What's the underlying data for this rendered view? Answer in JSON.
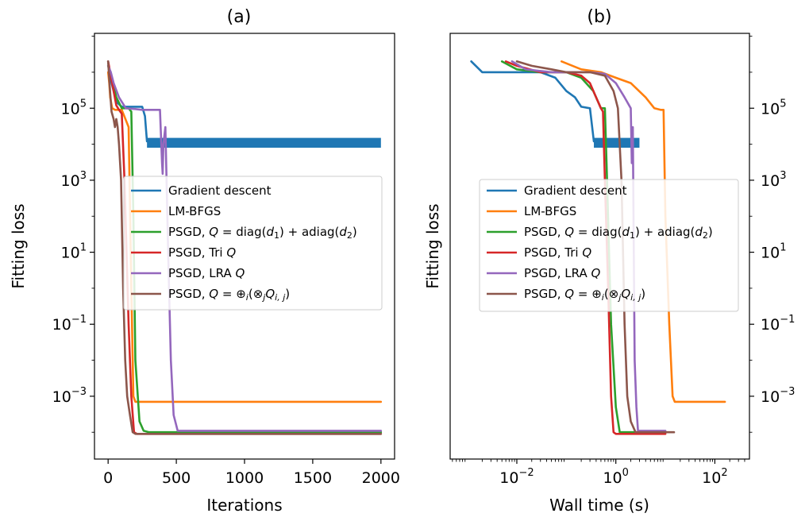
{
  "colors": {
    "gradient_descent": "#1f77b4",
    "lm_bfgs": "#ff7f0e",
    "psgd_diag": "#2ca02c",
    "psgd_tri": "#d62728",
    "psgd_lra": "#9467bd",
    "psgd_kron": "#8c564b"
  },
  "legend": {
    "gradient_descent": "Gradient descent",
    "lm_bfgs": "LM-BFGS",
    "psgd_diag": {
      "prefix": "PSGD, ",
      "Q": "Q",
      "eq": " = diag(",
      "d1": "d",
      "d1_sub": "1",
      "mid": ") + adiag(",
      "d2": "d",
      "d2_sub": "2",
      "end": ")"
    },
    "psgd_tri": {
      "prefix": "PSGD, Tri ",
      "Q": "Q"
    },
    "psgd_lra": {
      "prefix": "PSGD, LRA ",
      "Q": "Q"
    },
    "psgd_kron": {
      "prefix": "PSGD, ",
      "Q": "Q",
      "eq": " = ⊕",
      "i1": "i",
      "mid": "(⊗",
      "j": "j",
      "Qij": "Q",
      "ij": "i, j",
      "end": ")"
    }
  },
  "chart_data": [
    {
      "type": "line",
      "title": "(a)",
      "xlabel": "Iterations",
      "ylabel": "Fitting loss",
      "yscale": "log",
      "xlim": [
        -100,
        2100
      ],
      "ylim": [
        1.8e-05,
        12000000
      ],
      "xticks": [
        0,
        500,
        1000,
        1500,
        2000
      ],
      "xtick_labels": [
        "0",
        "500",
        "1000",
        "1500",
        "2000"
      ],
      "yticks": [
        0.001,
        0.1,
        10,
        1000,
        100000
      ],
      "ytick_labels": [
        {
          "base": "10",
          "exp": "−3"
        },
        {
          "base": "10",
          "exp": "−1"
        },
        {
          "base": "10",
          "exp": "1"
        },
        {
          "base": "10",
          "exp": "3"
        },
        {
          "base": "10",
          "exp": "5"
        }
      ],
      "legend_position": "center-right",
      "series": [
        {
          "key": "gradient_descent",
          "name": "Gradient descent",
          "band": {
            "x": [
              285,
              2000
            ],
            "y": [
              8000,
              15000
            ]
          },
          "x": [
            0,
            10,
            20,
            40,
            60,
            100,
            150,
            200,
            250,
            270,
            285
          ],
          "y": [
            2000000,
            1000000,
            600000,
            300000,
            150000,
            110000,
            110000,
            110000,
            110000,
            60000,
            12000
          ]
        },
        {
          "key": "lm_bfgs",
          "name": "LM-BFGS",
          "x": [
            0,
            8,
            15,
            30,
            50,
            100,
            150,
            170,
            185,
            200,
            2000
          ],
          "y": [
            1000000,
            500000,
            200000,
            100000,
            90000,
            90000,
            30000,
            1,
            0.001,
            0.0007,
            0.0007
          ]
        },
        {
          "key": "psgd_diag",
          "name": "PSGD diag+adiag",
          "x": [
            0,
            30,
            60,
            100,
            150,
            170,
            185,
            200,
            230,
            260,
            300,
            2000
          ],
          "y": [
            1500000,
            600000,
            200000,
            100000,
            100000,
            80000,
            100,
            0.01,
            0.0002,
            0.00011,
            0.0001,
            0.0001
          ]
        },
        {
          "key": "psgd_tri",
          "name": "PSGD Tri Q",
          "x": [
            0,
            20,
            40,
            60,
            80,
            100,
            120,
            135,
            150,
            170,
            190,
            210,
            2000
          ],
          "y": [
            2000000,
            800000,
            300000,
            120000,
            90000,
            70000,
            1000,
            10,
            0.1,
            0.001,
            0.0001,
            9e-05,
            9e-05
          ]
        },
        {
          "key": "psgd_lra",
          "name": "PSGD LRA Q",
          "x": [
            0,
            20,
            40,
            80,
            130,
            200,
            250,
            300,
            380,
            395,
            400,
            405,
            420,
            440,
            460,
            480,
            510,
            550,
            2000
          ],
          "y": [
            1500000,
            1000000,
            500000,
            200000,
            100000,
            95000,
            90000,
            90000,
            90000,
            3000,
            1500,
            10000,
            30000,
            10,
            0.01,
            0.0003,
            0.00011,
            0.00011,
            0.00011
          ]
        },
        {
          "key": "psgd_kron",
          "name": "PSGD Kron Q",
          "x": [
            0,
            10,
            25,
            40,
            50,
            60,
            70,
            80,
            95,
            110,
            125,
            140,
            160,
            180,
            200,
            215,
            2000
          ],
          "y": [
            2000000,
            500000,
            80000,
            50000,
            30000,
            50000,
            30000,
            10000,
            1000,
            1,
            0.01,
            0.001,
            0.0003,
            0.0001,
            9e-05,
            9e-05,
            9e-05
          ]
        }
      ]
    },
    {
      "type": "line",
      "title": "(b)",
      "xlabel": "Wall time (s)",
      "ylabel": "Fitting loss",
      "xscale": "log",
      "yscale": "log",
      "xlim": [
        0.00045,
        500
      ],
      "ylim": [
        1.8e-05,
        12000000
      ],
      "xticks": [
        0.01,
        1,
        100
      ],
      "xtick_labels": [
        {
          "base": "10",
          "exp": "−2"
        },
        {
          "base": "10",
          "exp": "0"
        },
        {
          "base": "10",
          "exp": "2"
        }
      ],
      "yticks": [
        0.001,
        0.1,
        10,
        1000,
        100000
      ],
      "ytick_labels": [
        {
          "base": "10",
          "exp": "−3"
        },
        {
          "base": "10",
          "exp": "−1"
        },
        {
          "base": "10",
          "exp": "1"
        },
        {
          "base": "10",
          "exp": "3"
        },
        {
          "base": "10",
          "exp": "5"
        }
      ],
      "legend_position": "center",
      "series": [
        {
          "key": "gradient_descent",
          "name": "Gradient descent",
          "band": {
            "x": [
              0.36,
              3.0
            ],
            "y": [
              8000,
              15000
            ]
          },
          "x": [
            0.0012,
            0.002,
            0.005,
            0.01,
            0.03,
            0.06,
            0.1,
            0.15,
            0.2,
            0.3,
            0.36
          ],
          "y": [
            2000000,
            1000000,
            1000000,
            1000000,
            1000000,
            700000,
            300000,
            200000,
            110000,
            100000,
            12000
          ]
        },
        {
          "key": "lm_bfgs",
          "name": "LM-BFGS",
          "x": [
            0.08,
            0.2,
            0.5,
            1,
            2,
            4,
            6,
            8,
            9.2,
            10,
            12,
            14,
            15.5,
            160
          ],
          "y": [
            2000000,
            1200000,
            1000000,
            700000,
            500000,
            200000,
            100000,
            90000,
            90000,
            100,
            0.1,
            0.001,
            0.0007,
            0.0007
          ]
        },
        {
          "key": "psgd_diag",
          "name": "PSGD diag+adiag",
          "x": [
            0.005,
            0.01,
            0.03,
            0.1,
            0.2,
            0.35,
            0.5,
            0.6,
            0.65,
            0.8,
            1.0,
            1.2,
            1.5,
            2.0,
            3.0
          ],
          "y": [
            2000000,
            1200000,
            1000000,
            1000000,
            700000,
            300000,
            100000,
            100000,
            3000,
            0.1,
            0.0005,
            0.0001,
            0.0001,
            0.0001,
            0.0001
          ]
        },
        {
          "key": "psgd_tri",
          "name": "PSGD Tri Q",
          "x": [
            0.006,
            0.01,
            0.03,
            0.1,
            0.2,
            0.3,
            0.4,
            0.5,
            0.55,
            0.6,
            0.7,
            0.8,
            0.9,
            1.0,
            2.0,
            10
          ],
          "y": [
            2000000,
            1500000,
            1000000,
            1000000,
            800000,
            500000,
            200000,
            100000,
            80000,
            1000,
            1,
            0.001,
            0.0001,
            9e-05,
            9e-05,
            9e-05
          ]
        },
        {
          "key": "psgd_lra",
          "name": "PSGD LRA Q",
          "x": [
            0.008,
            0.015,
            0.05,
            0.1,
            0.3,
            0.6,
            1.0,
            1.5,
            2.0,
            2.1,
            2.2,
            2.3,
            2.4,
            2.6,
            2.8,
            3.2,
            10
          ],
          "y": [
            2000000,
            1200000,
            1000000,
            1000000,
            1000000,
            900000,
            500000,
            200000,
            100000,
            3000,
            30000,
            10,
            0.01,
            0.0005,
            0.00011,
            0.00011,
            0.00011
          ]
        },
        {
          "key": "psgd_kron",
          "name": "PSGD Kron Q",
          "x": [
            0.01,
            0.02,
            0.05,
            0.1,
            0.3,
            0.6,
            0.9,
            1.1,
            1.3,
            1.5,
            1.7,
            2.0,
            2.5,
            3.0,
            15
          ],
          "y": [
            2000000,
            1500000,
            1200000,
            1000000,
            1000000,
            800000,
            300000,
            100000,
            1000,
            0.1,
            0.001,
            0.0002,
            0.0001,
            0.0001,
            0.0001
          ]
        }
      ]
    }
  ]
}
